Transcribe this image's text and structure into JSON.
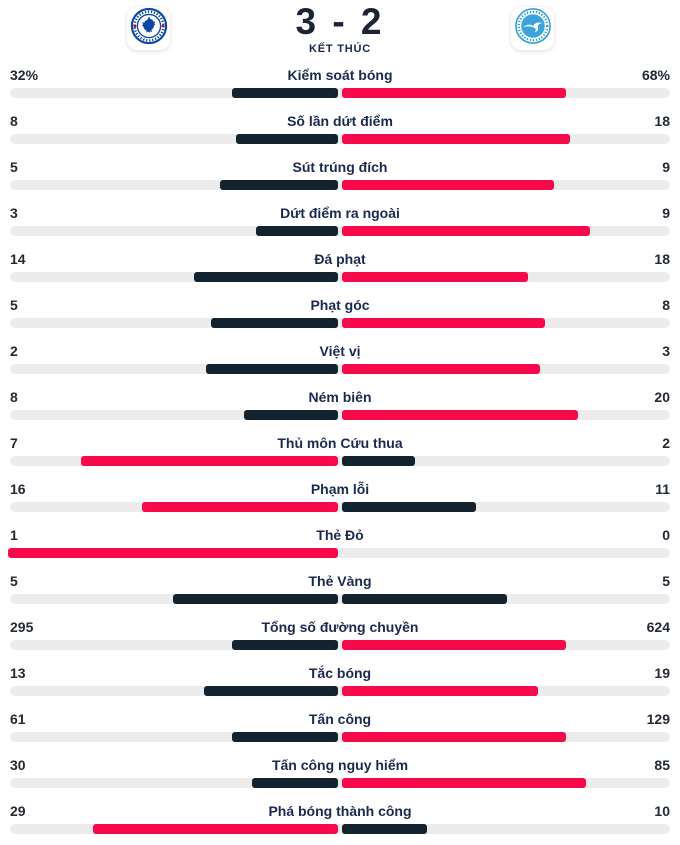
{
  "header": {
    "score": "3 - 2",
    "status": "KẾT THÚC",
    "home_team": "Chelsea",
    "away_team": "Brighton",
    "home_logo_icon": "chelsea-crest",
    "away_logo_icon": "brighton-seagull-crest"
  },
  "colors": {
    "bar_highlight_red": "#f8094b",
    "bar_dark_navy": "#12222e",
    "bar_track_gray": "#ececec",
    "label_navy": "#1b2950",
    "value_dark": "#232a34",
    "chelsea_blue": "#0a47a0",
    "brighton_blue": "#3aa5dc"
  },
  "stats": [
    {
      "label": "Kiểm soát bóng",
      "home": "32%",
      "away": "68%",
      "home_value": 32,
      "away_value": 68
    },
    {
      "label": "Số lần dứt điểm",
      "home": "8",
      "away": "18",
      "home_value": 8,
      "away_value": 18
    },
    {
      "label": "Sút trúng đích",
      "home": "5",
      "away": "9",
      "home_value": 5,
      "away_value": 9
    },
    {
      "label": "Dứt điểm ra ngoài",
      "home": "3",
      "away": "9",
      "home_value": 3,
      "away_value": 9
    },
    {
      "label": "Đá phạt",
      "home": "14",
      "away": "18",
      "home_value": 14,
      "away_value": 18
    },
    {
      "label": "Phạt góc",
      "home": "5",
      "away": "8",
      "home_value": 5,
      "away_value": 8
    },
    {
      "label": "Việt vị",
      "home": "2",
      "away": "3",
      "home_value": 2,
      "away_value": 3
    },
    {
      "label": "Ném biên",
      "home": "8",
      "away": "20",
      "home_value": 8,
      "away_value": 20
    },
    {
      "label": "Thủ môn Cứu thua",
      "home": "7",
      "away": "2",
      "home_value": 7,
      "away_value": 2
    },
    {
      "label": "Phạm lỗi",
      "home": "16",
      "away": "11",
      "home_value": 16,
      "away_value": 11
    },
    {
      "label": "Thẻ Đỏ",
      "home": "1",
      "away": "0",
      "home_value": 1,
      "away_value": 0
    },
    {
      "label": "Thẻ Vàng",
      "home": "5",
      "away": "5",
      "home_value": 5,
      "away_value": 5
    },
    {
      "label": "Tổng số đường chuyền",
      "home": "295",
      "away": "624",
      "home_value": 295,
      "away_value": 624
    },
    {
      "label": "Tắc bóng",
      "home": "13",
      "away": "19",
      "home_value": 13,
      "away_value": 19
    },
    {
      "label": "Tấn công",
      "home": "61",
      "away": "129",
      "home_value": 61,
      "away_value": 129
    },
    {
      "label": "Tấn công nguy hiểm",
      "home": "30",
      "away": "85",
      "home_value": 30,
      "away_value": 85
    },
    {
      "label": "Phá bóng thành công",
      "home": "29",
      "away": "10",
      "home_value": 29,
      "away_value": 10
    }
  ]
}
